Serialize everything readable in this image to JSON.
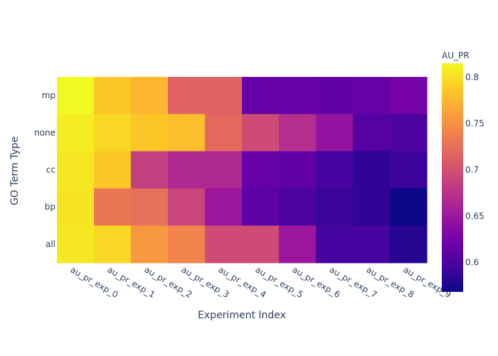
{
  "chart_data": {
    "type": "heatmap",
    "title": "",
    "xlabel": "Experiment Index",
    "ylabel": "GO Term Type",
    "x_categories": [
      "au_pr_exp_0",
      "au_pr_exp_1",
      "au_pr_exp_2",
      "au_pr_exp_3",
      "au_pr_exp_4",
      "au_pr_exp_5",
      "au_pr_exp_6",
      "au_pr_exp_7",
      "au_pr_exp_8",
      "au_pr_exp_9"
    ],
    "y_categories": [
      "mp",
      "none",
      "cc",
      "bp",
      "all"
    ],
    "values": [
      [
        0.815,
        0.785,
        0.775,
        0.715,
        0.715,
        0.615,
        0.615,
        0.612,
        0.615,
        0.625
      ],
      [
        0.808,
        0.795,
        0.785,
        0.78,
        0.72,
        0.695,
        0.67,
        0.645,
        0.605,
        0.6
      ],
      [
        0.805,
        0.785,
        0.685,
        0.665,
        0.665,
        0.615,
        0.612,
        0.595,
        0.585,
        0.59
      ],
      [
        0.803,
        0.73,
        0.725,
        0.69,
        0.65,
        0.61,
        0.6,
        0.59,
        0.585,
        0.565
      ],
      [
        0.805,
        0.795,
        0.755,
        0.74,
        0.695,
        0.695,
        0.65,
        0.595,
        0.595,
        0.58
      ]
    ],
    "colorbar": {
      "title": "AU_PR",
      "min": 0.568,
      "max": 0.815,
      "ticks": [
        0.6,
        0.65,
        0.7,
        0.75,
        0.8
      ],
      "tick_labels": [
        "0.6",
        "0.65",
        "0.7",
        "0.75",
        "0.8"
      ]
    },
    "colorscale": [
      "#0d0887",
      "#46039f",
      "#7201a8",
      "#9c179e",
      "#bd3786",
      "#d8576b",
      "#ed7953",
      "#fb9f3a",
      "#fdca26",
      "#f0f921"
    ]
  }
}
